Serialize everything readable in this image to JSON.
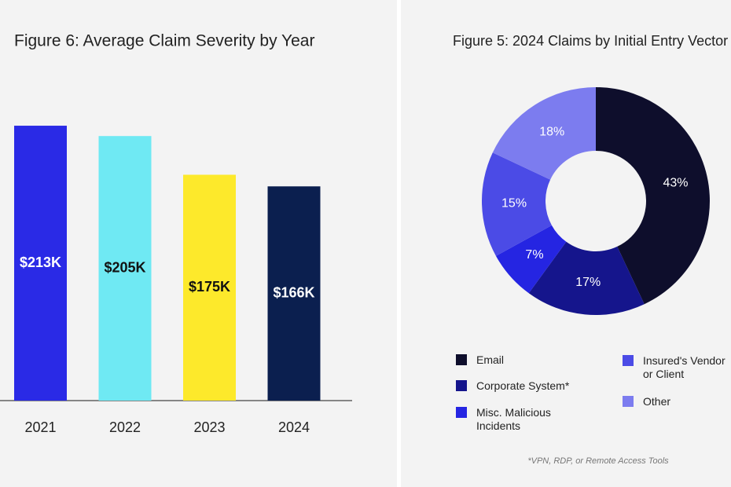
{
  "chart_data": [
    {
      "type": "bar",
      "title": "Figure 6: Average Claim Severity by Year",
      "categories": [
        "2021",
        "2022",
        "2023",
        "2024"
      ],
      "values": [
        213,
        205,
        175,
        166
      ],
      "value_labels": [
        "$213K",
        "$205K",
        "$175K",
        "$166K"
      ],
      "colors": [
        "#2a2ae6",
        "#6fe9f3",
        "#fde92b",
        "#0b1f4f"
      ]
    },
    {
      "type": "pie",
      "title": "Figure 5: 2024 Claims by Initial Entry Vector",
      "categories": [
        "Email",
        "Corporate System*",
        "Misc. Malicious Incidents",
        "Insured's Vendor or Client",
        "Other"
      ],
      "values": [
        43,
        17,
        7,
        15,
        18
      ],
      "value_labels": [
        "43%",
        "17%",
        "7%",
        "15%",
        "18%"
      ],
      "colors": [
        "#0e0e2c",
        "#15158c",
        "#2525e2",
        "#4b4be6",
        "#7c7cef"
      ],
      "note": "*VPN, RDP, or Remote Access Tools"
    }
  ]
}
